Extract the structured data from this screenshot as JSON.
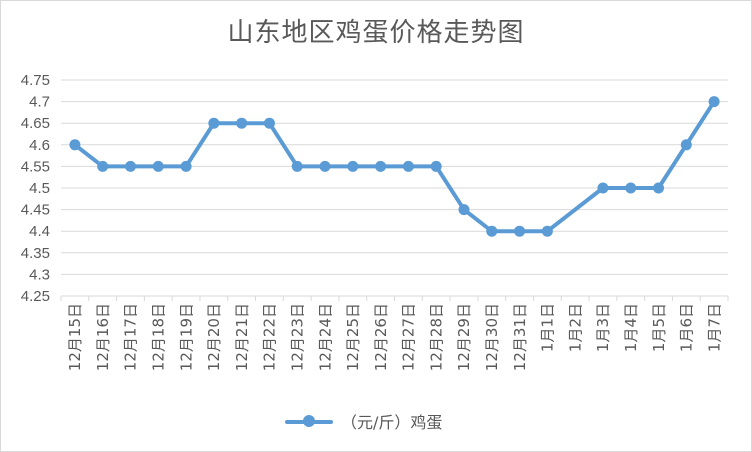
{
  "chart_data": {
    "type": "line",
    "title": "山东地区鸡蛋价格走势图",
    "xlabel": "",
    "ylabel": "",
    "ylim": [
      4.25,
      4.75
    ],
    "yticks": [
      "4.25",
      "4.3",
      "4.35",
      "4.4",
      "4.45",
      "4.5",
      "4.55",
      "4.6",
      "4.65",
      "4.7",
      "4.75"
    ],
    "grid": true,
    "legend_position": "bottom",
    "categories": [
      "12月15日",
      "12月16日",
      "12月17日",
      "12月18日",
      "12月19日",
      "12月20日",
      "12月21日",
      "12月22日",
      "12月23日",
      "12月24日",
      "12月25日",
      "12月26日",
      "12月27日",
      "12月28日",
      "12月29日",
      "12月30日",
      "12月31日",
      "1月1日",
      "1月2日",
      "1月3日",
      "1月4日",
      "1月5日",
      "1月6日",
      "1月7日"
    ],
    "series": [
      {
        "name": "（元/斤）鸡蛋",
        "color": "#5b9bd5",
        "values": [
          4.6,
          4.55,
          4.55,
          4.55,
          4.55,
          4.65,
          4.65,
          4.65,
          4.55,
          4.55,
          4.55,
          4.55,
          4.55,
          4.55,
          4.45,
          4.4,
          4.4,
          4.4,
          null,
          4.5,
          4.5,
          4.5,
          4.6,
          4.7
        ]
      }
    ]
  }
}
